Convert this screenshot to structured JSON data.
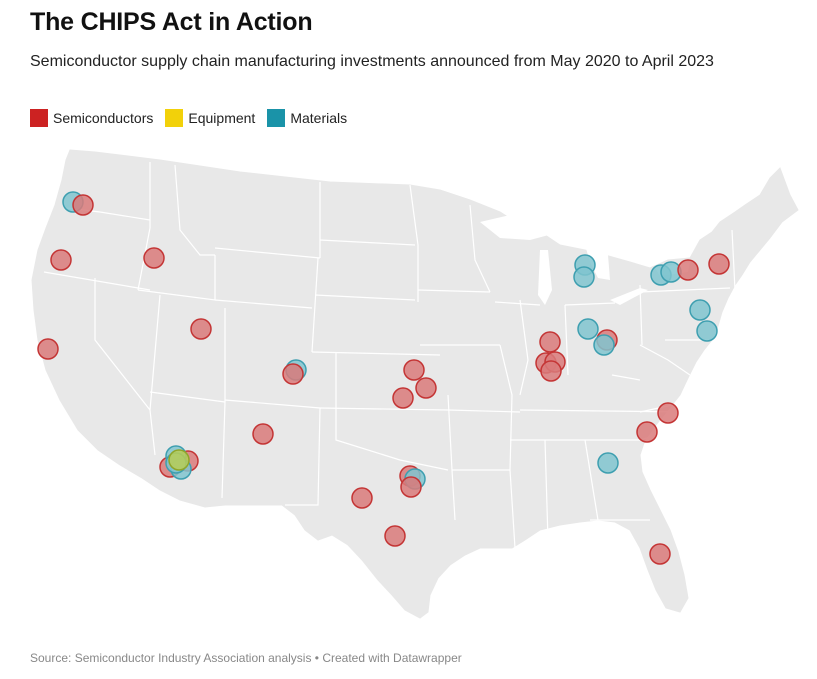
{
  "header": {
    "title": "The CHIPS Act in Action",
    "subtitle": "Semiconductor supply chain manufacturing investments announced from May 2020 to April 2023"
  },
  "legend": [
    {
      "label": "Semiconductors",
      "color": "#cc2222"
    },
    {
      "label": "Equipment",
      "color": "#f2d10a"
    },
    {
      "label": "Materials",
      "color": "#1a93a8"
    }
  ],
  "colors": {
    "land": "#e8e8e8",
    "border": "#ffffff",
    "semiconductors_fill": "#d97a7a",
    "semiconductors_stroke": "#c43535",
    "materials_fill": "#80c4cf",
    "materials_stroke": "#3e9fb0",
    "equipment_fill": "#b8cc55",
    "equipment_stroke": "#8fa62a"
  },
  "footer": {
    "source": "Source: Semiconductor Industry Association analysis • Created with Datawrapper"
  }
}
